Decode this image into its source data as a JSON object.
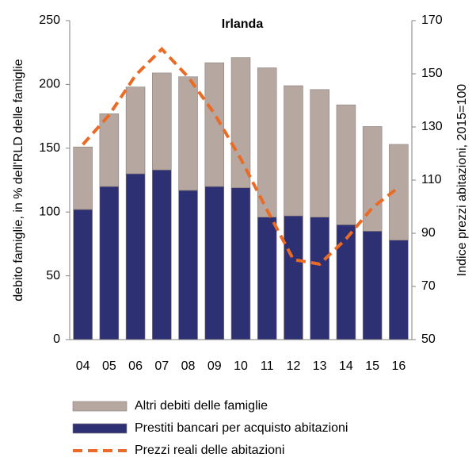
{
  "chart_data": {
    "type": "bar",
    "title": "Irlanda",
    "y_label": "debito famiglie, in % dell'RLD delle famiglie",
    "y2_label": "Indice prezzi abitazioni, 2015=100",
    "categories": [
      "04",
      "05",
      "06",
      "07",
      "08",
      "09",
      "10",
      "11",
      "12",
      "13",
      "14",
      "15",
      "16"
    ],
    "series": [
      {
        "name": "Altri debiti delle famiglie",
        "type": "bar",
        "color": "#b6a7a1",
        "values": [
          49,
          57,
          68,
          76,
          89,
          97,
          102,
          117,
          102,
          100,
          94,
          82,
          75
        ]
      },
      {
        "name": "Prestiti bancari per acquisto abitazioni",
        "type": "bar",
        "color": "#2e3074",
        "values": [
          102,
          120,
          130,
          133,
          117,
          120,
          119,
          96,
          97,
          96,
          90,
          85,
          78
        ]
      },
      {
        "name": "Prezzi reali delle abitazioni",
        "type": "line",
        "axis": "y2",
        "color": "#ea6b25",
        "values": [
          123.4,
          134.5,
          149.4,
          159.3,
          148.8,
          135,
          118,
          98.7,
          80.1,
          78.4,
          87.9,
          99.6,
          107.3
        ]
      }
    ],
    "ylim": [
      0,
      250
    ],
    "yticks": [
      0,
      50,
      100,
      150,
      200,
      250
    ],
    "y2lim": [
      50,
      170
    ],
    "y2ticks": [
      50,
      70,
      90,
      110,
      130,
      150,
      170
    ],
    "stacked": true
  }
}
